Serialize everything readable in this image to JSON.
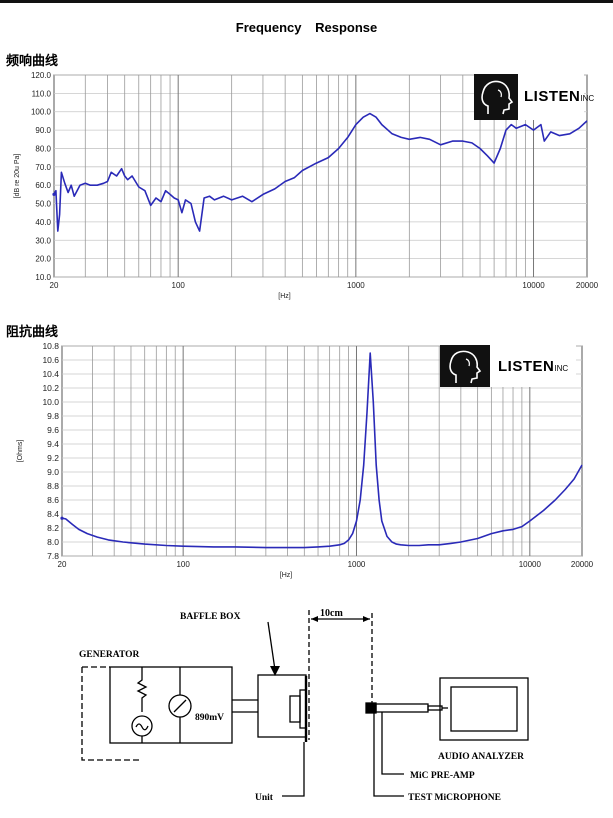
{
  "page": {
    "title": "Frequency    Response"
  },
  "sections": {
    "freq_title": "频响曲线",
    "imp_title": "阻抗曲线"
  },
  "logo": {
    "name": "LISTEN",
    "suffix": "INC"
  },
  "chart_data": [
    {
      "type": "line",
      "title": "频响曲线",
      "xlabel": "[Hz]",
      "ylabel": "[dB re 20u Pa]",
      "xscale": "log",
      "xlim": [
        20,
        20000
      ],
      "ylim": [
        10,
        120
      ],
      "yticks": [
        10.0,
        20.0,
        30.0,
        40.0,
        50.0,
        60.0,
        70.0,
        80.0,
        90.0,
        100.0,
        110.0,
        120.0
      ],
      "xticks": [
        20,
        100,
        1000,
        10000,
        20000
      ],
      "grid": true,
      "color": "#2a2ab8",
      "series": [
        {
          "x": [
            20,
            20.5,
            21,
            21.5,
            22,
            23,
            24,
            25,
            26,
            28,
            30,
            32,
            35,
            38,
            40,
            42,
            45,
            48,
            50,
            52,
            55,
            60,
            65,
            70,
            75,
            80,
            85,
            90,
            95,
            100,
            105,
            110,
            118,
            125,
            132,
            140,
            150,
            160,
            180,
            200,
            230,
            260,
            300,
            350,
            400,
            450,
            500,
            600,
            700,
            800,
            900,
            1000,
            1100,
            1200,
            1300,
            1400,
            1600,
            1800,
            2000,
            2300,
            2600,
            3000,
            3500,
            4000,
            4500,
            5000,
            5500,
            6000,
            6500,
            7000,
            7500,
            8000,
            9000,
            10000,
            11000,
            11500,
            12500,
            14000,
            16000,
            18000,
            20000
          ],
          "y": [
            55,
            57,
            35,
            44,
            67,
            61,
            56,
            60,
            54,
            60,
            61,
            60,
            60,
            61,
            62,
            67,
            65,
            69,
            65,
            63,
            65,
            59,
            57,
            49,
            53,
            51,
            57,
            55,
            53,
            52,
            45,
            52,
            50,
            40,
            35,
            53,
            54,
            52,
            54,
            52,
            54,
            51,
            55,
            58,
            62,
            64,
            68,
            72,
            75,
            80,
            86,
            93,
            97,
            99,
            97,
            93,
            88,
            86,
            85,
            86,
            85,
            82,
            84,
            84,
            83,
            80,
            76,
            72,
            80,
            90,
            93,
            91,
            93,
            90,
            93,
            84,
            89,
            87,
            88,
            91,
            95
          ]
        }
      ]
    },
    {
      "type": "line",
      "title": "阻抗曲线",
      "xlabel": "[Hz]",
      "ylabel": "[Ohms]",
      "xscale": "log",
      "xlim": [
        20,
        20000
      ],
      "ylim": [
        7.8,
        10.8
      ],
      "yticks": [
        7.8,
        8.0,
        8.2,
        8.4,
        8.6,
        8.8,
        9.0,
        9.2,
        9.4,
        9.6,
        9.8,
        10.0,
        10.2,
        10.4,
        10.6,
        10.8
      ],
      "xticks": [
        20,
        100,
        1000,
        10000,
        20000
      ],
      "grid": true,
      "color": "#2a2ab8",
      "series": [
        {
          "x": [
            20,
            21,
            23,
            25,
            28,
            32,
            37,
            45,
            60,
            80,
            100,
            150,
            200,
            300,
            400,
            500,
            600,
            700,
            800,
            850,
            900,
            950,
            1000,
            1050,
            1100,
            1150,
            1200,
            1250,
            1300,
            1350,
            1400,
            1500,
            1600,
            1700,
            1800,
            2000,
            2300,
            2600,
            3000,
            3500,
            4000,
            5000,
            6000,
            7000,
            8000,
            9000,
            10000,
            12000,
            14000,
            16000,
            18000,
            20000
          ],
          "y": [
            8.34,
            8.33,
            8.25,
            8.18,
            8.12,
            8.07,
            8.03,
            8.0,
            7.97,
            7.95,
            7.94,
            7.93,
            7.93,
            7.92,
            7.92,
            7.92,
            7.93,
            7.94,
            7.96,
            7.98,
            8.03,
            8.12,
            8.3,
            8.6,
            9.1,
            9.85,
            10.7,
            10.0,
            9.1,
            8.6,
            8.3,
            8.08,
            8.0,
            7.97,
            7.96,
            7.95,
            7.95,
            7.96,
            7.96,
            7.98,
            8.0,
            8.05,
            8.12,
            8.16,
            8.18,
            8.22,
            8.3,
            8.45,
            8.6,
            8.75,
            8.9,
            9.1
          ]
        }
      ]
    }
  ],
  "diagram": {
    "baffle_box": "BAFFLE BOX",
    "distance": "10cm",
    "generator": "GENERATOR",
    "voltage": "890mV",
    "audio_analyzer": "AUDIO ANALYZER",
    "mic_preamp": "MiC PRE-AMP",
    "test_mic": "TEST MiCROPHONE",
    "unit": "Unit"
  }
}
